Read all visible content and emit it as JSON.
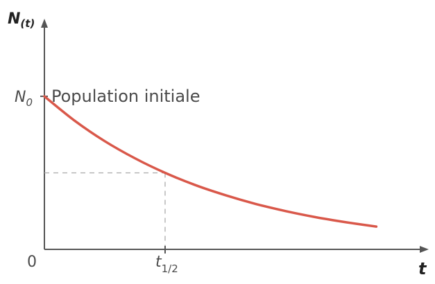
{
  "chart_data": {
    "type": "line",
    "title": "",
    "xlabel": "t",
    "ylabel_main": "N",
    "ylabel_sub": "(t)",
    "y0_label_main": "N",
    "y0_label_sub": "0",
    "y0_annotation": "Population initiale",
    "origin_label": "0",
    "half_life_label_main": "t",
    "half_life_label_sub": "1/2",
    "x": [
      0,
      0.25,
      0.5,
      0.75,
      1.0,
      1.25,
      1.5,
      1.75,
      2.0,
      2.25,
      2.5,
      2.75
    ],
    "y": [
      1.0,
      0.841,
      0.707,
      0.595,
      0.5,
      0.42,
      0.354,
      0.297,
      0.25,
      0.21,
      0.177,
      0.149
    ],
    "half_life": {
      "x": 1.0,
      "y": 0.5
    },
    "xlim": [
      0,
      3.15
    ],
    "ylim": [
      0,
      1.48
    ],
    "grid": false,
    "colors": {
      "curve": "#d9584a",
      "axis": "#555555",
      "guide": "#b0b0b0"
    }
  }
}
